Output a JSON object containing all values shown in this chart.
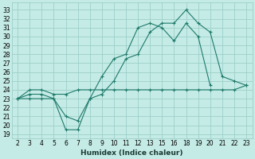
{
  "xlabel": "Humidex (Indice chaleur)",
  "bg_color": "#c5ebe6",
  "grid_color": "#9dcfc9",
  "line_color": "#1e7a6a",
  "xtick_labels": [
    "2",
    "3",
    "4",
    "5",
    "6",
    "7",
    "8",
    "9",
    "10",
    "11",
    "12",
    "13",
    "15",
    "16",
    "18",
    "19",
    "20",
    "21",
    "22",
    "23"
  ],
  "yticks": [
    19,
    20,
    21,
    22,
    23,
    24,
    25,
    26,
    27,
    28,
    29,
    30,
    31,
    32,
    33
  ],
  "ylim": [
    18.5,
    33.8
  ],
  "line1_y": [
    23,
    23,
    23,
    23,
    19.5,
    19.5,
    23,
    23.5,
    25,
    27.5,
    28,
    30.5,
    31.5,
    31.5,
    33,
    31.5,
    30.5,
    25.5,
    25,
    24.5
  ],
  "line2_y": [
    23,
    23.5,
    23.5,
    23,
    21,
    20.5,
    23,
    25.5,
    27.5,
    28,
    31,
    31.5,
    31,
    29.5,
    31.5,
    30,
    24.5,
    null,
    null,
    null
  ],
  "line3_y": [
    23,
    24,
    24,
    23.5,
    23.5,
    24,
    24,
    24,
    24,
    24,
    24,
    24,
    24,
    24,
    24,
    24,
    24,
    24,
    24,
    24.5
  ],
  "tick_fontsize": 5.5,
  "label_fontsize": 6.5
}
